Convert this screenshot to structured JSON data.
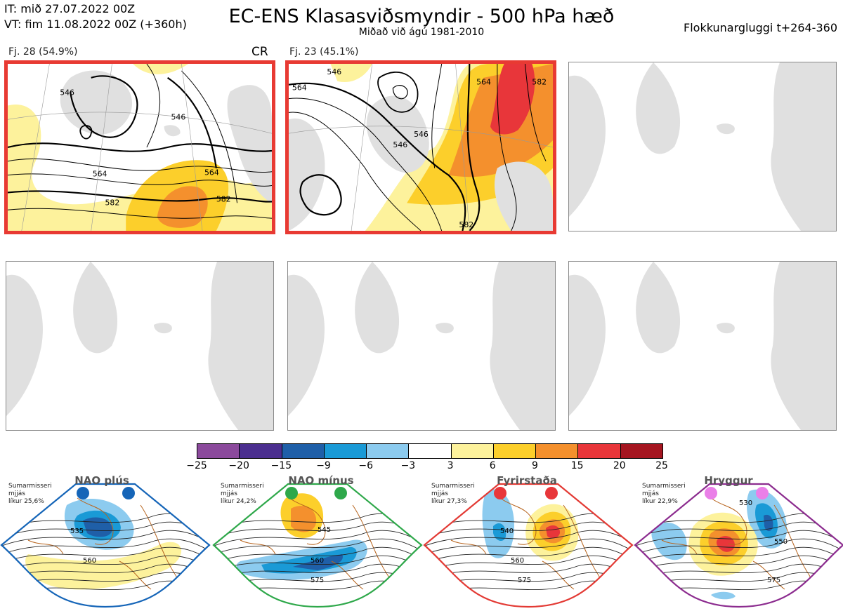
{
  "header": {
    "it_line": "IT: mið 27.07.2022 00Z",
    "vt_line": "VT: fim 11.08.2022 00Z  (+360h)",
    "title": "EC-ENS Klasasviðsmyndir - 500 hPa hæð",
    "subtitle": "Miðað við ágú 1981-2010",
    "window": "Flokkunargluggi t+264-360"
  },
  "clusters": [
    {
      "label": "Fj. 28 (54.9%)",
      "mark": "CR",
      "contours": [
        "546",
        "546",
        "564",
        "564",
        "582",
        "582"
      ]
    },
    {
      "label": "Fj. 23 (45.1%)",
      "contours": [
        "546",
        "564",
        "564",
        "546",
        "546",
        "582",
        "582"
      ]
    }
  ],
  "colorbar": {
    "ticks": [
      "−25",
      "−20",
      "−15",
      "−9",
      "−6",
      "−3",
      "3",
      "6",
      "9",
      "15",
      "20",
      "25"
    ],
    "colors": [
      "#8b4a9c",
      "#4b2e8f",
      "#1f5fa8",
      "#1a9ad6",
      "#8ccbef",
      "#ffffff",
      "#fdf29c",
      "#fccf2b",
      "#f4902d",
      "#e8363a",
      "#a51520"
    ]
  },
  "regimes": [
    {
      "name": "NAO plús",
      "season": "Sumarmisseri",
      "smooth": "mjjás",
      "prob": "líkur 25,6%",
      "color": "#1565b8",
      "dot": "#1565b8",
      "contours": [
        "535",
        "560"
      ]
    },
    {
      "name": "NAO mínus",
      "season": "Sumarmisseri",
      "smooth": "mjjás",
      "prob": "líkur 24,2%",
      "color": "#2ea84a",
      "dot": "#2ea84a",
      "contours": [
        "545",
        "560",
        "575"
      ]
    },
    {
      "name": "Fyrirstaða",
      "season": "Sumarmisseri",
      "smooth": "mjjás",
      "prob": "líkur 27,3%",
      "color": "#e33a34",
      "dot": "#e8363a",
      "contours": [
        "540",
        "560",
        "575"
      ]
    },
    {
      "name": "Hryggur",
      "season": "Sumarmisseri",
      "smooth": "mjjás",
      "prob": "líkur 22,9%",
      "color": "#8c2c8f",
      "dot": "#ea7fe8",
      "contours": [
        "530",
        "550",
        "575"
      ]
    }
  ]
}
